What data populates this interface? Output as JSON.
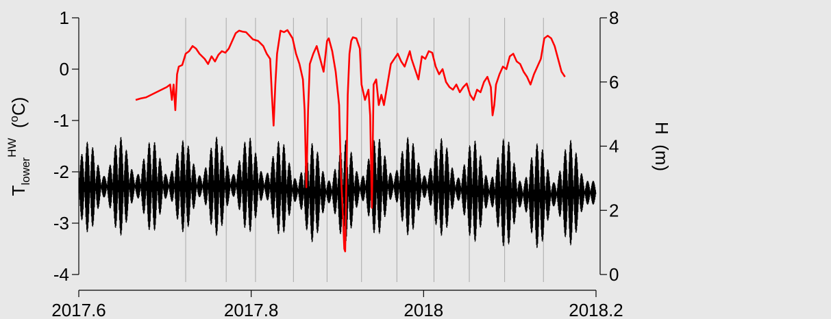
{
  "chart_data": {
    "type": "line",
    "background_color": "#e8e8e8",
    "x_axis": {
      "range": [
        2017.6,
        2018.2
      ],
      "ticks": [
        2017.6,
        2017.8,
        2018,
        2018.2
      ],
      "tick_labels": [
        "2017.6",
        "2017.8",
        "2018",
        "2018.2"
      ]
    },
    "y_left": {
      "label_main": "T",
      "label_sub": "lower",
      "label_sup": "HW",
      "label_unit_open": "  (",
      "label_unit_sup": "o",
      "label_unit_close": "C)",
      "range": [
        -4,
        1
      ],
      "ticks": [
        1,
        0,
        -1,
        -2,
        -3,
        -4
      ],
      "tick_labels": [
        "1",
        "0",
        "-1",
        "-2",
        "-3",
        "-4"
      ]
    },
    "y_right": {
      "label": "H  (m)",
      "range": [
        0,
        8
      ],
      "ticks": [
        8,
        6,
        4,
        2,
        0
      ],
      "tick_labels": [
        "8",
        "6",
        "4",
        "2",
        "0"
      ]
    },
    "vertical_markers": [
      2017.724,
      2017.771,
      2017.805,
      2017.849,
      2017.888,
      2017.928,
      2017.969,
      2018.012,
      2018.053,
      2018.094,
      2018.139
    ],
    "series": [
      {
        "axis": "right",
        "color": "#000000",
        "style": "tidal-oscillation",
        "start": 2017.6,
        "end": 2018.2,
        "mean": 2.9,
        "tidal_amplitude_min": 0.45,
        "tidal_amplitude_max": 2.0,
        "spring_peaks": [
          2017.611,
          2017.648,
          2017.685,
          2017.722,
          2017.76,
          2017.797,
          2017.834,
          2017.871,
          2017.909,
          2017.946,
          2017.983,
          2018.021,
          2018.058,
          2018.095,
          2018.133,
          2018.17
        ],
        "peak_water_level": [
          4.15,
          4.3,
          4.2,
          4.2,
          4.3,
          4.3,
          4.2,
          4.1,
          4.2,
          4.3,
          4.3,
          4.25,
          4.2,
          4.3,
          4.1,
          4.2
        ],
        "trough_water_level": [
          1.3,
          1.2,
          1.3,
          1.3,
          1.2,
          1.3,
          1.2,
          1.0,
          1.0,
          1.2,
          1.2,
          1.2,
          1.0,
          0.8,
          0.8,
          0.9
        ]
      },
      {
        "axis": "left",
        "color": "#ff0000",
        "x": [
          2017.666,
          2017.672,
          2017.678,
          2017.684,
          2017.69,
          2017.696,
          2017.702,
          2017.706,
          2017.708,
          2017.71,
          2017.712,
          2017.714,
          2017.716,
          2017.72,
          2017.724,
          2017.728,
          2017.732,
          2017.736,
          2017.74,
          2017.746,
          2017.75,
          2017.754,
          2017.758,
          2017.762,
          2017.766,
          2017.77,
          2017.774,
          2017.778,
          2017.782,
          2017.786,
          2017.79,
          2017.794,
          2017.798,
          2017.802,
          2017.808,
          2017.814,
          2017.818,
          2017.822,
          2017.824,
          2017.826,
          2017.828,
          2017.83,
          2017.834,
          2017.838,
          2017.842,
          2017.848,
          2017.852,
          2017.856,
          2017.86,
          2017.862,
          2017.864,
          2017.866,
          2017.868,
          2017.872,
          2017.876,
          2017.88,
          2017.884,
          2017.888,
          2017.89,
          2017.894,
          2017.898,
          2017.902,
          2017.904,
          2017.906,
          2017.908,
          2017.909,
          2017.91,
          2017.912,
          2017.914,
          2017.916,
          2017.918,
          2017.922,
          2017.926,
          2017.928,
          2017.932,
          2017.936,
          2017.938,
          2017.94,
          2017.942,
          2017.945,
          2017.948,
          2017.951,
          2017.954,
          2017.958,
          2017.962,
          2017.966,
          2017.97,
          2017.974,
          2017.978,
          2017.982,
          2017.984,
          2017.986,
          2017.99,
          2017.994,
          2017.998,
          2018.002,
          2018.006,
          2018.01,
          2018.014,
          2018.018,
          2018.022,
          2018.026,
          2018.03,
          2018.034,
          2018.038,
          2018.042,
          2018.046,
          2018.05,
          2018.054,
          2018.058,
          2018.062,
          2018.066,
          2018.07,
          2018.074,
          2018.078,
          2018.08,
          2018.082,
          2018.084,
          2018.088,
          2018.092,
          2018.096,
          2018.1,
          2018.104,
          2018.108,
          2018.112,
          2018.116,
          2018.12,
          2018.124,
          2018.128,
          2018.132,
          2018.136,
          2018.14,
          2018.144,
          2018.148,
          2018.152,
          2018.156,
          2018.16,
          2018.164
        ],
        "y": [
          -0.6,
          -0.57,
          -0.55,
          -0.5,
          -0.45,
          -0.4,
          -0.35,
          -0.3,
          -0.6,
          -0.3,
          -0.8,
          -0.1,
          0.05,
          0.08,
          0.3,
          0.35,
          0.45,
          0.4,
          0.3,
          0.2,
          0.1,
          0.25,
          0.15,
          0.28,
          0.35,
          0.32,
          0.4,
          0.55,
          0.7,
          0.75,
          0.73,
          0.72,
          0.65,
          0.58,
          0.55,
          0.45,
          0.3,
          0.2,
          -0.5,
          -1.1,
          -0.3,
          0.3,
          0.75,
          0.72,
          0.76,
          0.6,
          0.3,
          0.1,
          -0.2,
          -0.8,
          -2.3,
          -0.8,
          0.1,
          0.3,
          0.45,
          0.2,
          -0.05,
          0.55,
          0.6,
          0.35,
          -0.05,
          -0.7,
          -2.0,
          -2.7,
          -3.5,
          -3.55,
          -2.6,
          -0.5,
          0.3,
          0.55,
          0.62,
          0.6,
          0.4,
          -0.3,
          -0.6,
          -0.4,
          -0.9,
          -2.7,
          -0.3,
          -0.2,
          -0.7,
          -0.5,
          -0.7,
          -0.3,
          0.1,
          0.2,
          0.3,
          0.15,
          0.05,
          0.25,
          0.35,
          0.2,
          0.0,
          -0.2,
          0.25,
          0.2,
          0.35,
          0.32,
          0.05,
          -0.1,
          0.0,
          -0.25,
          -0.35,
          -0.4,
          -0.3,
          -0.45,
          -0.35,
          -0.28,
          -0.5,
          -0.6,
          -0.4,
          -0.45,
          -0.25,
          -0.15,
          -0.35,
          -0.9,
          -0.7,
          -0.3,
          -0.1,
          0.05,
          0.0,
          0.25,
          0.3,
          0.15,
          0.1,
          -0.05,
          -0.15,
          -0.3,
          -0.1,
          0.05,
          0.2,
          0.6,
          0.65,
          0.6,
          0.45,
          0.2,
          -0.05,
          -0.15
        ]
      }
    ]
  }
}
